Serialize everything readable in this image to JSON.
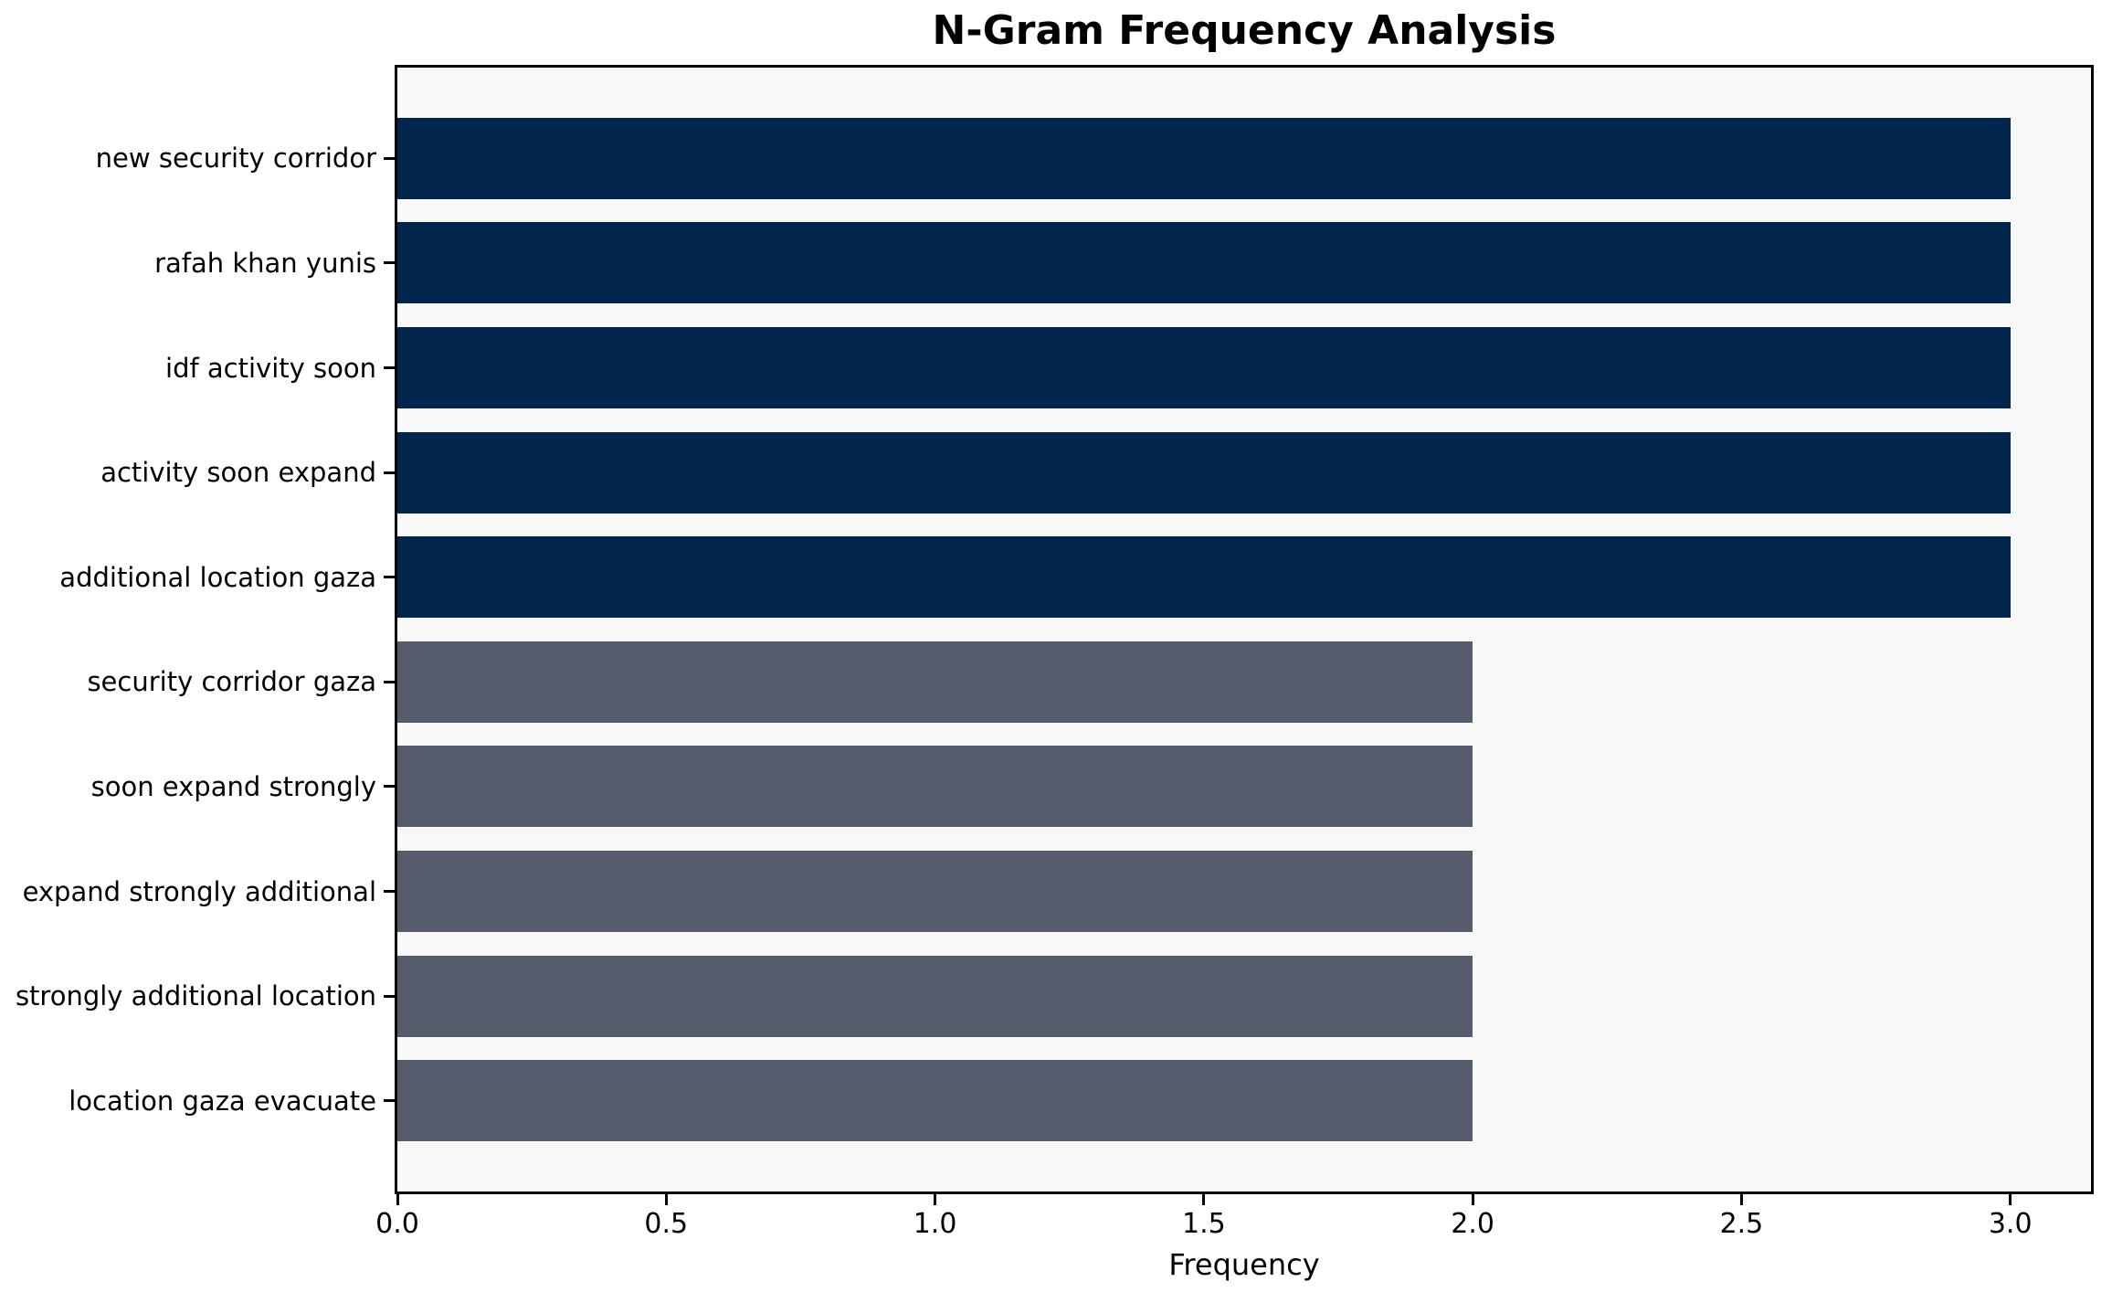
{
  "chart_data": {
    "type": "bar",
    "orientation": "horizontal",
    "title": "N-Gram Frequency Analysis",
    "xlabel": "Frequency",
    "ylabel": "",
    "categories": [
      "new security corridor",
      "rafah khan yunis",
      "idf activity soon",
      "activity soon expand",
      "additional location gaza",
      "security corridor gaza",
      "soon expand strongly",
      "expand strongly additional",
      "strongly additional location",
      "location gaza evacuate"
    ],
    "values": [
      3,
      3,
      3,
      3,
      3,
      2,
      2,
      2,
      2,
      2
    ],
    "bar_colors": [
      "#02254e",
      "#02254e",
      "#02254e",
      "#02254e",
      "#02254e",
      "#565c6b",
      "#565c6b",
      "#565c6b",
      "#565c6b",
      "#565c6b"
    ],
    "xlim": [
      0,
      3.15
    ],
    "xticks": [
      0.0,
      0.5,
      1.0,
      1.5,
      2.0,
      2.5,
      3.0
    ],
    "xtick_labels": [
      "0.0",
      "0.5",
      "1.0",
      "1.5",
      "2.0",
      "2.5",
      "3.0"
    ],
    "grid": false,
    "legend": null,
    "colors": {
      "plot_background": "#f8f8f9",
      "figure_background": "#ffffff",
      "spine": "#000000",
      "text": "#000000",
      "bar_high": "#02254e",
      "bar_low": "#565c6b"
    }
  }
}
